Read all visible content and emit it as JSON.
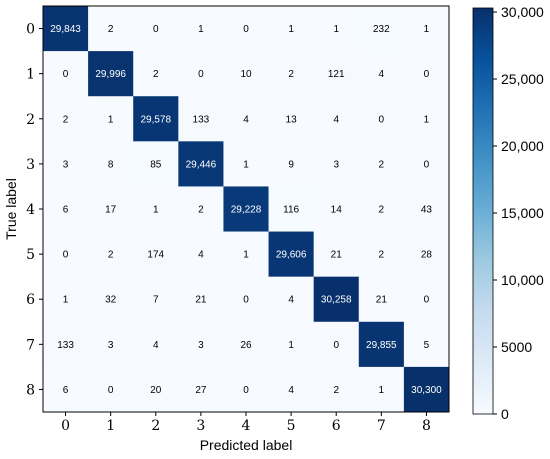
{
  "chart_data": {
    "type": "heatmap",
    "title": "",
    "xlabel": "Predicted label",
    "ylabel": "True label",
    "x_categories": [
      "0",
      "1",
      "2",
      "3",
      "4",
      "5",
      "6",
      "7",
      "8"
    ],
    "y_categories": [
      "0",
      "1",
      "2",
      "3",
      "4",
      "5",
      "6",
      "7",
      "8"
    ],
    "matrix": [
      [
        29843,
        2,
        0,
        1,
        0,
        1,
        1,
        232,
        1
      ],
      [
        0,
        29996,
        2,
        0,
        10,
        2,
        121,
        4,
        0
      ],
      [
        2,
        1,
        29578,
        133,
        4,
        13,
        4,
        0,
        1
      ],
      [
        3,
        8,
        85,
        29446,
        1,
        9,
        3,
        2,
        0
      ],
      [
        6,
        17,
        1,
        2,
        29228,
        116,
        14,
        2,
        43
      ],
      [
        0,
        2,
        174,
        4,
        1,
        29606,
        21,
        2,
        28
      ],
      [
        1,
        32,
        7,
        21,
        0,
        4,
        30258,
        21,
        0
      ],
      [
        133,
        3,
        4,
        3,
        26,
        1,
        0,
        29855,
        5
      ],
      [
        6,
        0,
        20,
        27,
        0,
        4,
        2,
        1,
        30300
      ]
    ],
    "colormap": "Blues",
    "color_low": "#f7fbff",
    "color_high": "#08306b",
    "colorbar": {
      "range": [
        0,
        30300
      ],
      "ticks": [
        0,
        5000,
        10000,
        15000,
        20000,
        25000,
        30000
      ],
      "tick_labels": [
        "0",
        "5000",
        "10,000",
        "15,000",
        "20,000",
        "25,000",
        "30,000"
      ]
    },
    "grid": false
  }
}
